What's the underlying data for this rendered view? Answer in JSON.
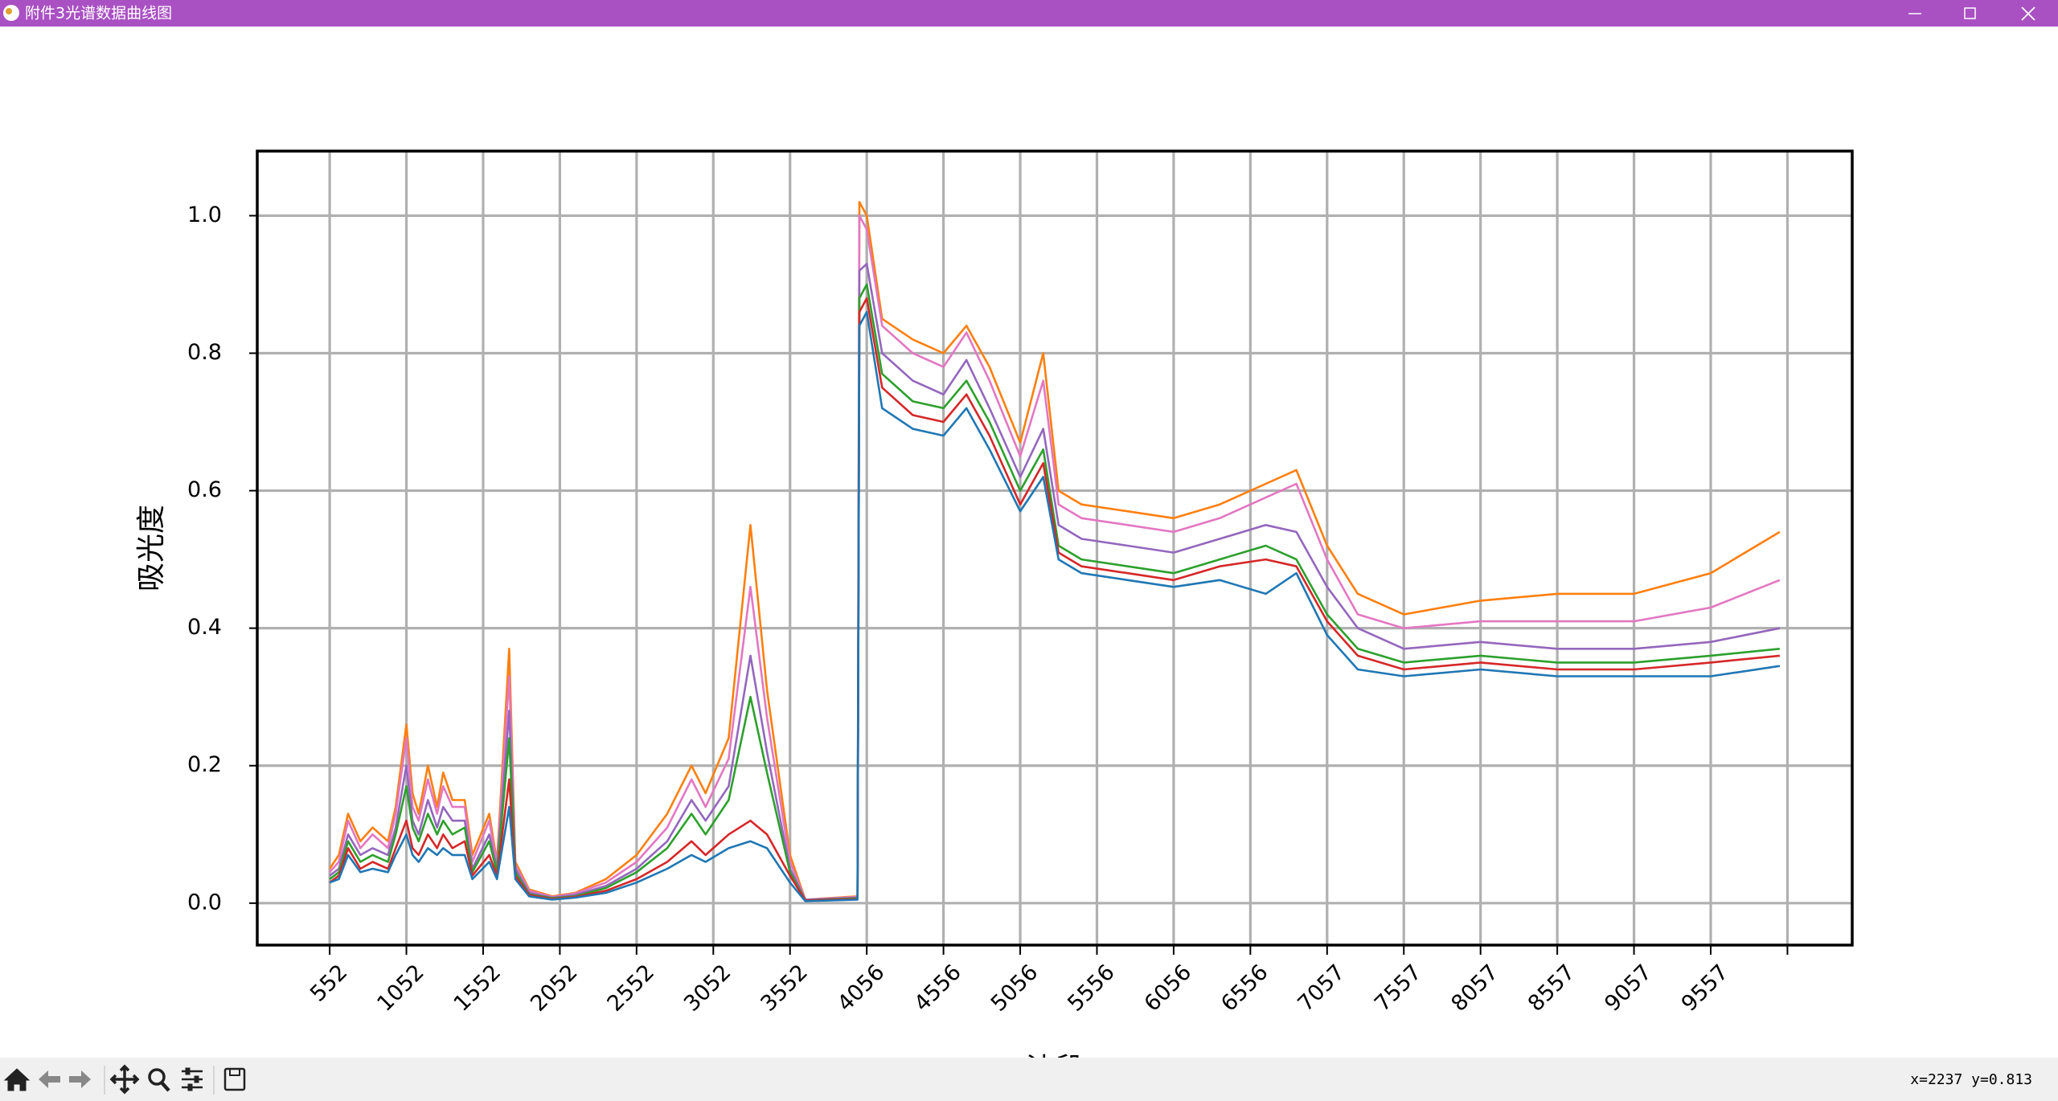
{
  "window": {
    "title": "附件3光谱数据曲线图"
  },
  "status": "x=2237 y=0.813",
  "chart_data": {
    "type": "line",
    "xlabel": "波段",
    "ylabel": "吸光度",
    "x": [
      0,
      60,
      120,
      200,
      280,
      380,
      430,
      500,
      540,
      580,
      640,
      700,
      740,
      800,
      880,
      930,
      1040,
      1090,
      1170,
      1210,
      1300,
      1450,
      1600,
      1800,
      2000,
      2200,
      2358,
      2450,
      2600,
      2742,
      2850,
      3000,
      3100,
      3440,
      3452,
      3500,
      3600,
      3800,
      4000,
      4150,
      4300,
      4500,
      4650,
      4750,
      4900,
      5200,
      5500,
      5800,
      6100,
      6300,
      6500,
      6700,
      7000,
      7500,
      8000,
      8500,
      9000,
      9450
    ],
    "series": [
      {
        "color": "#ff7f0e",
        "values": [
          0.05,
          0.07,
          0.13,
          0.09,
          0.11,
          0.09,
          0.14,
          0.26,
          0.16,
          0.13,
          0.2,
          0.14,
          0.19,
          0.15,
          0.15,
          0.07,
          0.13,
          0.06,
          0.37,
          0.06,
          0.02,
          0.01,
          0.015,
          0.035,
          0.07,
          0.13,
          0.2,
          0.16,
          0.24,
          0.55,
          0.31,
          0.07,
          0.005,
          0.01,
          1.02,
          1.0,
          0.85,
          0.82,
          0.8,
          0.84,
          0.78,
          0.67,
          0.8,
          0.6,
          0.58,
          0.57,
          0.56,
          0.58,
          0.61,
          0.63,
          0.52,
          0.45,
          0.42,
          0.44,
          0.45,
          0.45,
          0.48,
          0.54
        ]
      },
      {
        "color": "#e377c2",
        "values": [
          0.045,
          0.06,
          0.12,
          0.08,
          0.1,
          0.08,
          0.13,
          0.24,
          0.14,
          0.12,
          0.18,
          0.13,
          0.17,
          0.14,
          0.14,
          0.06,
          0.12,
          0.055,
          0.33,
          0.055,
          0.018,
          0.009,
          0.014,
          0.03,
          0.06,
          0.11,
          0.18,
          0.14,
          0.21,
          0.46,
          0.27,
          0.06,
          0.005,
          0.009,
          1.0,
          0.98,
          0.84,
          0.8,
          0.78,
          0.83,
          0.76,
          0.65,
          0.76,
          0.58,
          0.56,
          0.55,
          0.54,
          0.56,
          0.59,
          0.61,
          0.5,
          0.42,
          0.4,
          0.41,
          0.41,
          0.41,
          0.43,
          0.47
        ]
      },
      {
        "color": "#9467bd",
        "values": [
          0.04,
          0.05,
          0.1,
          0.07,
          0.08,
          0.07,
          0.11,
          0.2,
          0.12,
          0.1,
          0.15,
          0.11,
          0.14,
          0.12,
          0.12,
          0.05,
          0.1,
          0.05,
          0.28,
          0.05,
          0.015,
          0.008,
          0.012,
          0.025,
          0.05,
          0.09,
          0.15,
          0.12,
          0.17,
          0.36,
          0.22,
          0.05,
          0.005,
          0.008,
          0.92,
          0.93,
          0.8,
          0.76,
          0.74,
          0.79,
          0.72,
          0.62,
          0.69,
          0.55,
          0.53,
          0.52,
          0.51,
          0.53,
          0.55,
          0.54,
          0.46,
          0.4,
          0.37,
          0.38,
          0.37,
          0.37,
          0.38,
          0.4
        ]
      },
      {
        "color": "#2ca02c",
        "values": [
          0.035,
          0.045,
          0.09,
          0.06,
          0.07,
          0.06,
          0.1,
          0.17,
          0.11,
          0.09,
          0.13,
          0.1,
          0.12,
          0.1,
          0.11,
          0.045,
          0.09,
          0.045,
          0.24,
          0.045,
          0.013,
          0.007,
          0.01,
          0.022,
          0.045,
          0.08,
          0.13,
          0.1,
          0.15,
          0.3,
          0.19,
          0.045,
          0.004,
          0.007,
          0.88,
          0.9,
          0.77,
          0.73,
          0.72,
          0.76,
          0.7,
          0.6,
          0.66,
          0.52,
          0.5,
          0.49,
          0.48,
          0.5,
          0.52,
          0.5,
          0.42,
          0.37,
          0.35,
          0.36,
          0.35,
          0.35,
          0.36,
          0.37
        ]
      },
      {
        "color": "#d62728",
        "values": [
          0.03,
          0.04,
          0.08,
          0.05,
          0.06,
          0.05,
          0.08,
          0.12,
          0.08,
          0.07,
          0.1,
          0.08,
          0.1,
          0.08,
          0.09,
          0.04,
          0.07,
          0.04,
          0.18,
          0.04,
          0.012,
          0.006,
          0.009,
          0.018,
          0.035,
          0.06,
          0.09,
          0.07,
          0.1,
          0.12,
          0.1,
          0.04,
          0.004,
          0.006,
          0.86,
          0.88,
          0.75,
          0.71,
          0.7,
          0.74,
          0.68,
          0.58,
          0.64,
          0.51,
          0.49,
          0.48,
          0.47,
          0.49,
          0.5,
          0.49,
          0.41,
          0.36,
          0.34,
          0.35,
          0.34,
          0.34,
          0.35,
          0.36
        ]
      },
      {
        "color": "#1f77b4",
        "values": [
          0.03,
          0.035,
          0.07,
          0.045,
          0.05,
          0.045,
          0.07,
          0.1,
          0.07,
          0.06,
          0.08,
          0.07,
          0.08,
          0.07,
          0.07,
          0.035,
          0.06,
          0.035,
          0.14,
          0.035,
          0.01,
          0.005,
          0.008,
          0.015,
          0.03,
          0.05,
          0.07,
          0.06,
          0.08,
          0.09,
          0.08,
          0.03,
          0.003,
          0.005,
          0.84,
          0.86,
          0.72,
          0.69,
          0.68,
          0.72,
          0.66,
          0.57,
          0.62,
          0.5,
          0.48,
          0.47,
          0.46,
          0.47,
          0.45,
          0.48,
          0.39,
          0.34,
          0.33,
          0.34,
          0.33,
          0.33,
          0.33,
          0.345
        ]
      }
    ],
    "xlim": [
      -472,
      9922
    ],
    "xticks": [
      {
        "value": 0,
        "label": "552"
      },
      {
        "value": 500,
        "label": "1052"
      },
      {
        "value": 1000,
        "label": "1552"
      },
      {
        "value": 1500,
        "label": "2052"
      },
      {
        "value": 2000,
        "label": "2552"
      },
      {
        "value": 2500,
        "label": "3052"
      },
      {
        "value": 3000,
        "label": "3552"
      },
      {
        "value": 3500,
        "label": "4056"
      },
      {
        "value": 4000,
        "label": "4556"
      },
      {
        "value": 4500,
        "label": "5056"
      },
      {
        "value": 5000,
        "label": "5556"
      },
      {
        "value": 5500,
        "label": "6056"
      },
      {
        "value": 6000,
        "label": "6556"
      },
      {
        "value": 6500,
        "label": "7057"
      },
      {
        "value": 7000,
        "label": "7557"
      },
      {
        "value": 7500,
        "label": "8057"
      },
      {
        "value": 8000,
        "label": "8557"
      },
      {
        "value": 8500,
        "label": "9057"
      },
      {
        "value": 9000,
        "label": "9557"
      },
      {
        "value": 9500,
        "label": null
      }
    ],
    "ylim": [
      -0.061,
      1.094
    ],
    "yticks": [
      {
        "value": 0,
        "label": "0.0"
      },
      0.2,
      0.4,
      0.6,
      0.8,
      {
        "value": 1,
        "label": "1.0"
      }
    ],
    "grid": true
  }
}
